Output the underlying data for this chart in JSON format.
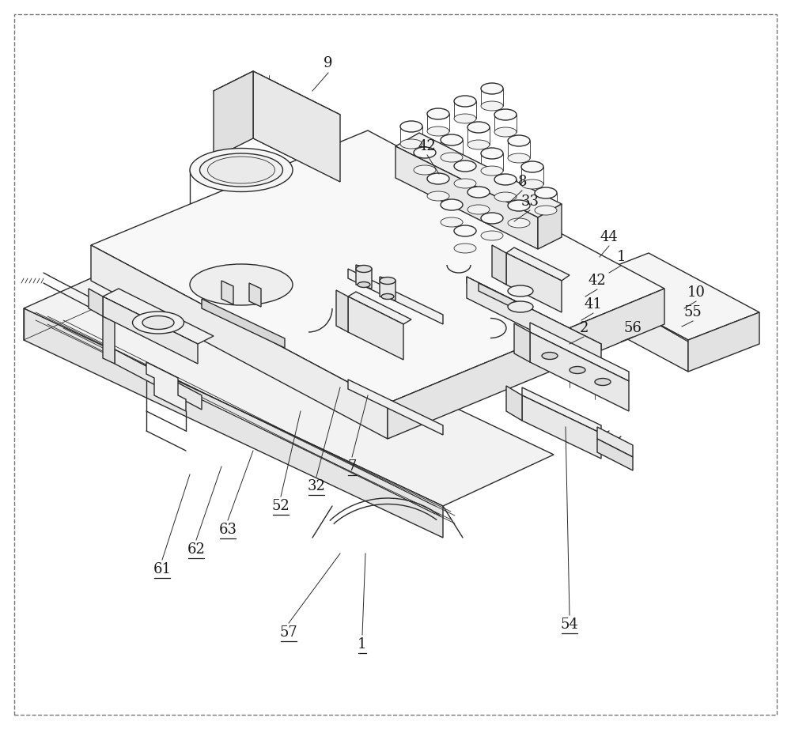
{
  "bg_color": "#ffffff",
  "line_color": "#2a2a2a",
  "lw": 1.0,
  "tlw": 0.6,
  "fig_width": 10.0,
  "fig_height": 9.22,
  "dpi": 100,
  "border_dash": [
    4,
    4
  ],
  "label_fontsize": 13,
  "label_color": "#1a1a1a"
}
